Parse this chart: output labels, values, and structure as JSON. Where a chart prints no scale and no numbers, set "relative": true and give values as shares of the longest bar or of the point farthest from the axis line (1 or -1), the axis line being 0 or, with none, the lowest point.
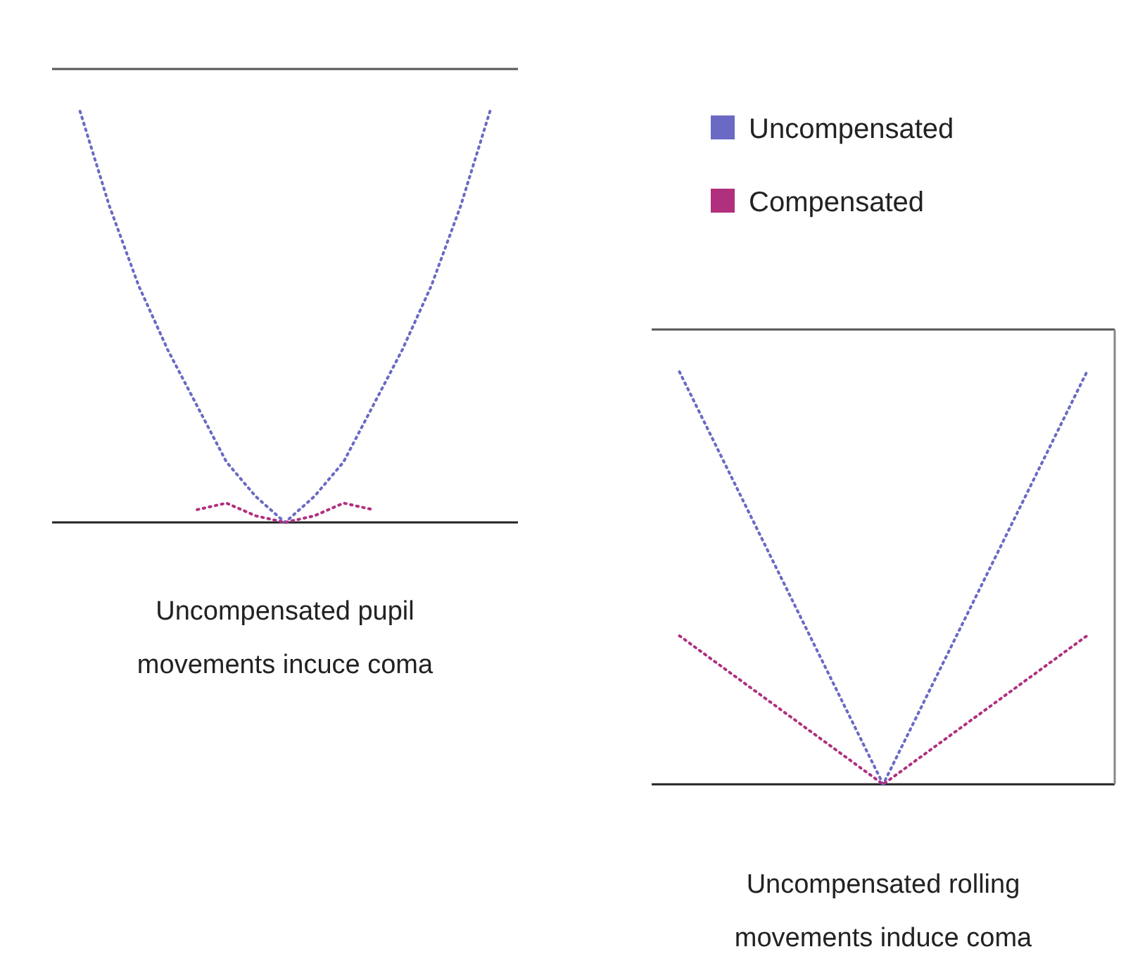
{
  "chart_data": [
    {
      "type": "line",
      "relative": true,
      "line_style": "dotted",
      "marker": "none",
      "legend": "right",
      "categories": [
        null,
        null,
        null,
        null,
        null,
        null,
        null,
        null,
        null,
        null,
        null,
        null,
        null,
        null,
        null
      ],
      "series": [
        {
          "name": "Uncompensated",
          "color": "#6a6ac4",
          "values": [
            1,
            0.77,
            0.576,
            0.419,
            0.283,
            0.147,
            0.063,
            0,
            0.063,
            0.147,
            0.283,
            0.419,
            0.576,
            0.77,
            1
          ]
        },
        {
          "name": "Compensated",
          "color": "#b0307e",
          "values": [
            null,
            null,
            null,
            null,
            0.031,
            0.047,
            0.016,
            0,
            0.016,
            0.047,
            0.031,
            null,
            null,
            null,
            null
          ]
        }
      ],
      "annotations": [
        "Uncompensated pupil movements incuce coma"
      ]
    },
    {
      "type": "line",
      "relative": true,
      "line_style": "dotted",
      "marker": "none",
      "categories": [
        null,
        null,
        null,
        null,
        null,
        null,
        null,
        null,
        null
      ],
      "series": [
        {
          "color": "#6a6ac4",
          "values": [
            1,
            0.75,
            0.5,
            0.25,
            0,
            0.25,
            0.5,
            0.75,
            1
          ]
        },
        {
          "color": "#b0307e",
          "values": [
            0.36,
            0.27,
            0.18,
            0.09,
            0,
            0.09,
            0.18,
            0.27,
            0.36
          ]
        }
      ],
      "annotations": [
        "Uncompensated rolling movements induce coma"
      ]
    }
  ]
}
